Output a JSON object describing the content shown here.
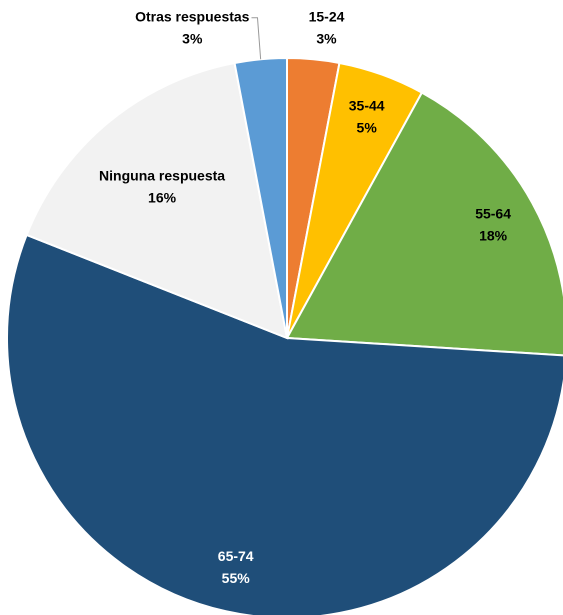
{
  "chart_data": {
    "type": "pie",
    "categories": [
      "15-24",
      "35-44",
      "55-64",
      "65-74",
      "Ninguna respuesta",
      "Otras respuestas"
    ],
    "values": [
      3,
      5,
      18,
      55,
      16,
      3
    ],
    "value_labels": [
      "3%",
      "5%",
      "18%",
      "55%",
      "16%",
      "3%"
    ],
    "colors": [
      "#ed7d31",
      "#ffc000",
      "#70ad47",
      "#1f4e79",
      "#f2f2f2",
      "#5b9bd5"
    ]
  }
}
